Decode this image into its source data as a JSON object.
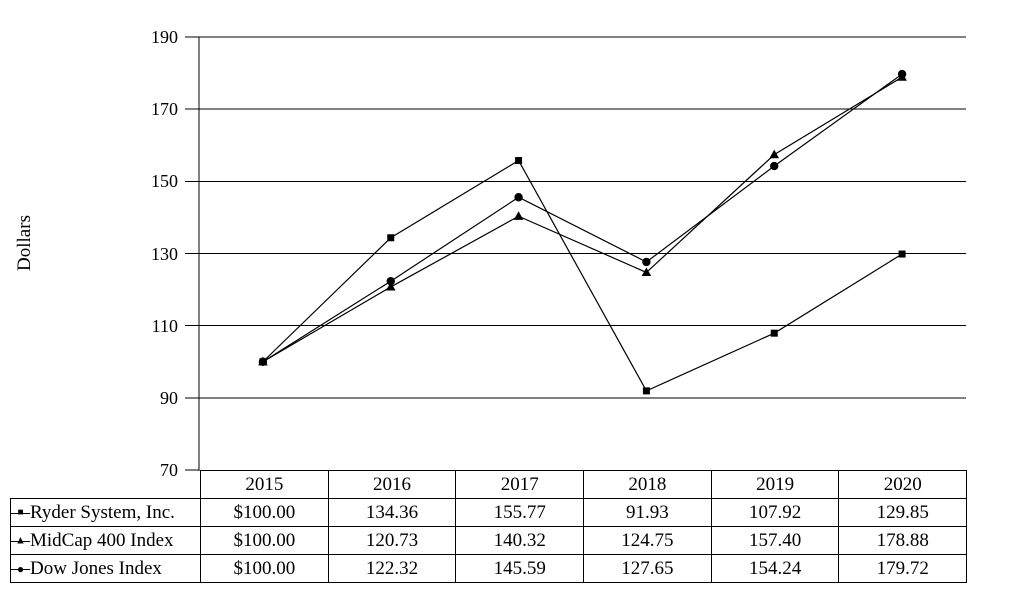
{
  "chart_data": {
    "type": "line",
    "title": "",
    "xlabel": "",
    "ylabel": "Dollars",
    "categories": [
      "2015",
      "2016",
      "2017",
      "2018",
      "2019",
      "2020"
    ],
    "ylim": [
      70,
      190
    ],
    "yticks": [
      70,
      90,
      110,
      130,
      150,
      170,
      190
    ],
    "grid": "horizontal-only",
    "legend_position": "table-below-left",
    "series": [
      {
        "name": "Ryder System, Inc.",
        "marker": "square",
        "values": [
          100.0,
          134.36,
          155.77,
          91.93,
          107.92,
          129.85
        ]
      },
      {
        "name": "MidCap 400 Index",
        "marker": "triangle",
        "values": [
          100.0,
          120.73,
          140.32,
          124.75,
          157.4,
          178.88
        ]
      },
      {
        "name": "Dow Jones Index",
        "marker": "circle",
        "values": [
          100.0,
          122.32,
          145.59,
          127.65,
          154.24,
          179.72
        ]
      }
    ]
  },
  "table": {
    "year_headers": [
      "2015",
      "2016",
      "2017",
      "2018",
      "2019",
      "2020"
    ],
    "rows": [
      {
        "label": "Ryder System, Inc.",
        "marker": "square",
        "values": [
          "$100.00",
          "134.36",
          "155.77",
          "91.93",
          "107.92",
          "129.85"
        ]
      },
      {
        "label": "MidCap 400 Index",
        "marker": "triangle",
        "values": [
          "$100.00",
          "120.73",
          "140.32",
          "124.75",
          "157.40",
          "178.88"
        ]
      },
      {
        "label": "Dow Jones Index",
        "marker": "circle",
        "values": [
          "$100.00",
          "122.32",
          "145.59",
          "127.65",
          "154.24",
          "179.72"
        ]
      }
    ]
  },
  "icons": {
    "square_marker": "■",
    "triangle_marker": "▲",
    "circle_marker": "●"
  },
  "colors": {
    "line": "#000000",
    "text": "#000000",
    "background": "#ffffff"
  }
}
